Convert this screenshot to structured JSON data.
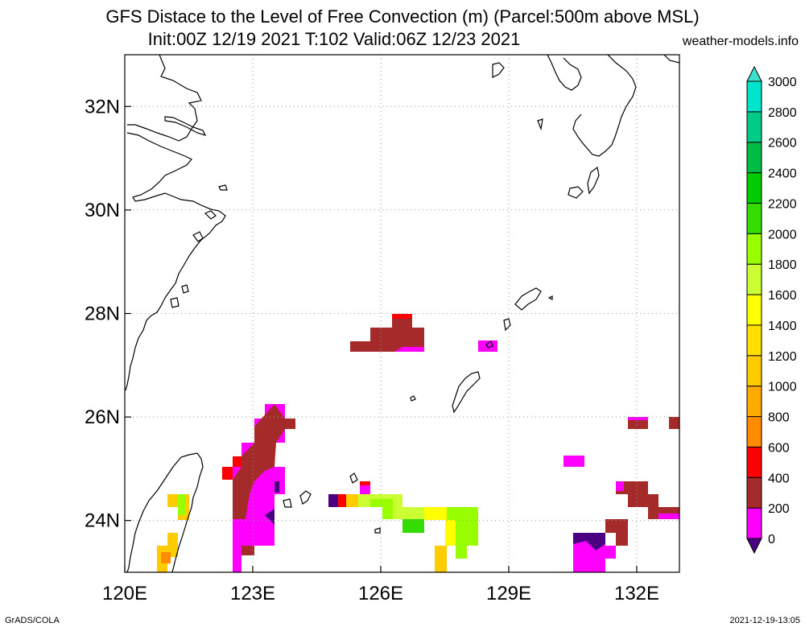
{
  "title_line1": "GFS Distace to the Level of Free Convection (m) (Parcel:500m above MSL)",
  "title_line2": "Init:00Z 12/19 2021 T:102 Valid:06Z 12/23 2021",
  "site": "weather-models.info",
  "footer_left": "GrADS/COLA",
  "footer_right": "2021-12-19-13:05",
  "map": {
    "lon_range": [
      120,
      133
    ],
    "lat_range": [
      23,
      33
    ],
    "lon_ticks": [
      "120E",
      "123E",
      "126E",
      "129E",
      "132E"
    ],
    "lat_ticks": [
      "24N",
      "26N",
      "28N",
      "30N",
      "32N"
    ],
    "gridlines": "dotted"
  },
  "colorbar": {
    "labels": [
      "0",
      "200",
      "400",
      "600",
      "800",
      "1000",
      "1200",
      "1400",
      "1600",
      "1800",
      "2000",
      "2200",
      "2400",
      "2600",
      "2800",
      "3000"
    ],
    "colors": [
      "#4b0082",
      "#ff00ff",
      "#a52a2a",
      "#ff0000",
      "#ff8c00",
      "#ffaa00",
      "#ffcc00",
      "#ffe000",
      "#ffff00",
      "#ccff33",
      "#99ff00",
      "#33dd00",
      "#00cc00",
      "#00bb44",
      "#00cc88",
      "#00e5cc",
      "#40e0d0"
    ]
  }
}
